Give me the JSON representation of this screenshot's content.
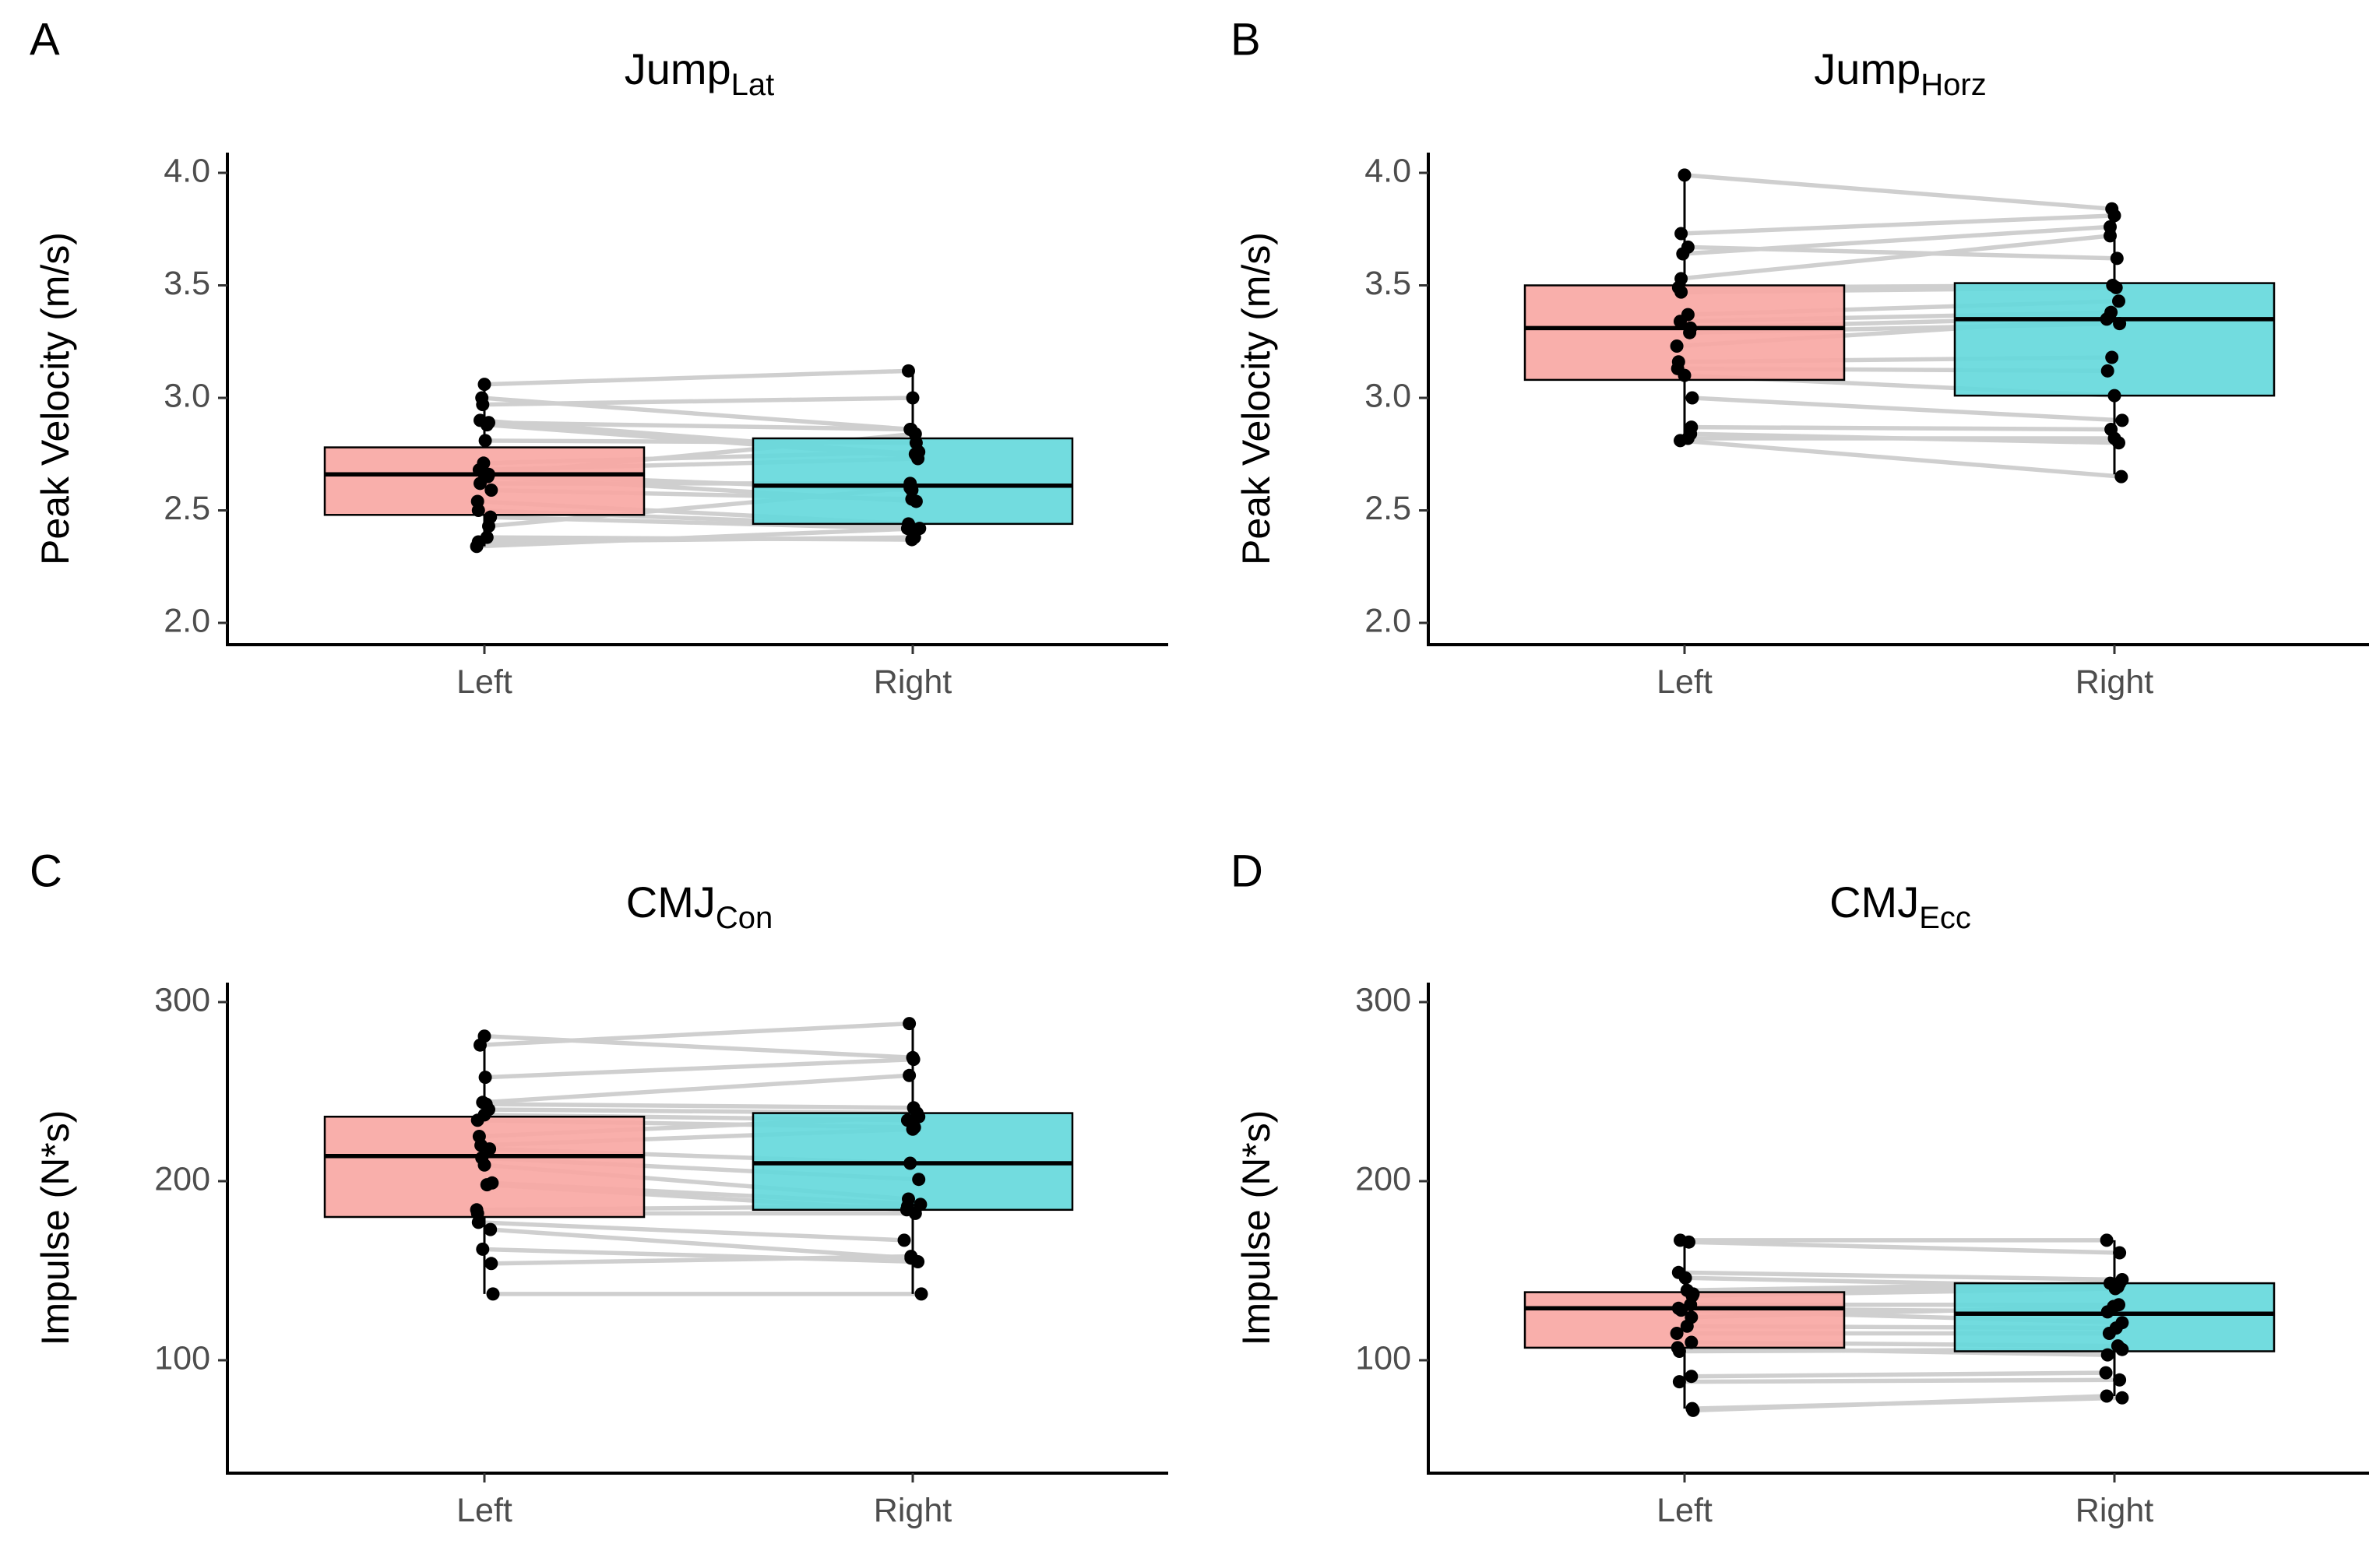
{
  "colors": {
    "left_fill": "#F8A8A4",
    "right_fill": "#66D9DC",
    "point": "#000000",
    "pair_line": "#CFCFCF"
  },
  "chart_data": [
    {
      "type": "box",
      "panel": "A",
      "title_main": "Jump",
      "title_sub": "Lat",
      "ylabel": "Peak Velocity (m/s)",
      "ylim": [
        1.9,
        4.1
      ],
      "yticks": [
        2.0,
        2.5,
        3.0,
        3.5,
        4.0
      ],
      "ytick_labels": [
        "2.0",
        "2.5",
        "3.0",
        "3.5",
        "4.0"
      ],
      "categories": [
        "Left",
        "Right"
      ],
      "boxes": [
        {
          "q1": 2.48,
          "median": 2.66,
          "q3": 2.78,
          "whisker_low": 2.34,
          "whisker_high": 3.06
        },
        {
          "q1": 2.44,
          "median": 2.61,
          "q3": 2.82,
          "whisker_low": 2.38,
          "whisker_high": 3.12
        }
      ],
      "pairs": [
        [
          3.06,
          3.12
        ],
        [
          3.0,
          2.86
        ],
        [
          2.97,
          3.0
        ],
        [
          2.9,
          2.75
        ],
        [
          2.89,
          2.86
        ],
        [
          2.88,
          2.74
        ],
        [
          2.81,
          2.8
        ],
        [
          2.71,
          2.76
        ],
        [
          2.68,
          2.73
        ],
        [
          2.66,
          2.84
        ],
        [
          2.66,
          2.59
        ],
        [
          2.65,
          2.54
        ],
        [
          2.62,
          2.62
        ],
        [
          2.59,
          2.55
        ],
        [
          2.54,
          2.44
        ],
        [
          2.5,
          2.43
        ],
        [
          2.47,
          2.42
        ],
        [
          2.43,
          2.6
        ],
        [
          2.38,
          2.37
        ],
        [
          2.36,
          2.38
        ],
        [
          2.34,
          2.42
        ]
      ],
      "jitter": [
        [
          0.0,
          -0.05
        ],
        [
          -0.03,
          -0.02
        ],
        [
          -0.02,
          0.0
        ],
        [
          -0.05,
          0.03
        ],
        [
          0.05,
          -0.03
        ],
        [
          0.03,
          0.05
        ],
        [
          0.01,
          0.04
        ],
        [
          -0.01,
          0.07
        ],
        [
          -0.06,
          0.06
        ],
        [
          0.05,
          0.03
        ],
        [
          0.0,
          -0.01
        ],
        [
          0.04,
          0.04
        ],
        [
          -0.05,
          -0.03
        ],
        [
          0.08,
          -0.01
        ],
        [
          -0.08,
          -0.05
        ],
        [
          -0.07,
          -0.04
        ],
        [
          0.07,
          -0.06
        ],
        [
          0.05,
          -0.03
        ],
        [
          0.03,
          -0.01
        ],
        [
          -0.07,
          0.02
        ],
        [
          -0.09,
          0.08
        ]
      ]
    },
    {
      "type": "box",
      "panel": "B",
      "title_main": "Jump",
      "title_sub": "Horz",
      "ylabel": "Peak Velocity (m/s)",
      "ylim": [
        1.9,
        4.1
      ],
      "yticks": [
        2.0,
        2.5,
        3.0,
        3.5,
        4.0
      ],
      "ytick_labels": [
        "2.0",
        "2.5",
        "3.0",
        "3.5",
        "4.0"
      ],
      "categories": [
        "Left",
        "Right"
      ],
      "boxes": [
        {
          "q1": 3.08,
          "median": 3.31,
          "q3": 3.5,
          "whisker_low": 2.82,
          "whisker_high": 3.99
        },
        {
          "q1": 3.01,
          "median": 3.35,
          "q3": 3.51,
          "whisker_low": 2.66,
          "whisker_high": 3.84
        }
      ],
      "pairs": [
        [
          3.99,
          3.84
        ],
        [
          3.73,
          3.81
        ],
        [
          3.67,
          3.62
        ],
        [
          3.64,
          3.76
        ],
        [
          3.53,
          3.72
        ],
        [
          3.49,
          3.5
        ],
        [
          3.47,
          3.49
        ],
        [
          3.37,
          3.43
        ],
        [
          3.34,
          3.38
        ],
        [
          3.31,
          3.36
        ],
        [
          3.29,
          3.33
        ],
        [
          3.23,
          3.35
        ],
        [
          3.16,
          3.18
        ],
        [
          3.13,
          3.12
        ],
        [
          3.1,
          3.01
        ],
        [
          3.0,
          2.9
        ],
        [
          2.87,
          2.86
        ],
        [
          2.84,
          2.8
        ],
        [
          2.82,
          2.82
        ],
        [
          2.81,
          2.65
        ]
      ],
      "jitter": [
        [
          0.0,
          -0.03
        ],
        [
          -0.04,
          0.0
        ],
        [
          0.04,
          0.03
        ],
        [
          -0.02,
          -0.05
        ],
        [
          -0.04,
          -0.05
        ],
        [
          -0.07,
          -0.02
        ],
        [
          -0.04,
          0.02
        ],
        [
          0.04,
          0.05
        ],
        [
          -0.05,
          -0.04
        ],
        [
          0.07,
          -0.06
        ],
        [
          0.06,
          0.06
        ],
        [
          -0.09,
          -0.09
        ],
        [
          -0.07,
          -0.03
        ],
        [
          -0.08,
          -0.08
        ],
        [
          0.0,
          0.0
        ],
        [
          0.09,
          0.09
        ],
        [
          0.08,
          -0.04
        ],
        [
          0.07,
          0.05
        ],
        [
          0.04,
          0.0
        ],
        [
          -0.05,
          0.08
        ]
      ]
    },
    {
      "type": "box",
      "panel": "C",
      "title_main": "CMJ",
      "title_sub": "Con",
      "ylabel": "Impulse (N*s)",
      "ylim": [
        45,
        312
      ],
      "yticks": [
        100,
        200,
        300
      ],
      "ytick_labels": [
        "100",
        "200",
        "300"
      ],
      "categories": [
        "Left",
        "Right"
      ],
      "boxes": [
        {
          "q1": 180,
          "median": 214,
          "q3": 236,
          "whisker_low": 137,
          "whisker_high": 281
        },
        {
          "q1": 184,
          "median": 210,
          "q3": 238,
          "whisker_low": 137,
          "whisker_high": 288
        }
      ],
      "pairs": [
        [
          281,
          269
        ],
        [
          276,
          288
        ],
        [
          258,
          268
        ],
        [
          244,
          259
        ],
        [
          243,
          241
        ],
        [
          240,
          238
        ],
        [
          237,
          234
        ],
        [
          234,
          230
        ],
        [
          225,
          236
        ],
        [
          220,
          229
        ],
        [
          218,
          210
        ],
        [
          213,
          201
        ],
        [
          209,
          190
        ],
        [
          199,
          187
        ],
        [
          198,
          184
        ],
        [
          184,
          186
        ],
        [
          182,
          182
        ],
        [
          177,
          167
        ],
        [
          173,
          157
        ],
        [
          162,
          155
        ],
        [
          154,
          158
        ],
        [
          137,
          137
        ]
      ],
      "jitter": [
        [
          0.0,
          0.0
        ],
        [
          -0.05,
          -0.04
        ],
        [
          0.01,
          0.01
        ],
        [
          -0.02,
          -0.04
        ],
        [
          0.02,
          0.01
        ],
        [
          0.05,
          0.05
        ],
        [
          0.0,
          -0.06
        ],
        [
          -0.08,
          0.02
        ],
        [
          -0.06,
          0.07
        ],
        [
          -0.04,
          0.0
        ],
        [
          0.06,
          -0.03
        ],
        [
          -0.03,
          0.07
        ],
        [
          0.0,
          -0.05
        ],
        [
          0.09,
          0.09
        ],
        [
          0.03,
          -0.07
        ],
        [
          -0.09,
          -0.06
        ],
        [
          -0.08,
          0.03
        ],
        [
          -0.07,
          -0.1
        ],
        [
          0.07,
          -0.02
        ],
        [
          -0.02,
          0.06
        ],
        [
          0.08,
          -0.02
        ],
        [
          0.1,
          0.1
        ]
      ]
    },
    {
      "type": "box",
      "panel": "D",
      "title_main": "CMJ",
      "title_sub": "Ecc",
      "ylabel": "Impulse (N*s)",
      "ylim": [
        45,
        312
      ],
      "yticks": [
        100,
        200,
        300
      ],
      "ytick_labels": [
        "100",
        "200",
        "300"
      ],
      "categories": [
        "Left",
        "Right"
      ],
      "boxes": [
        {
          "q1": 107,
          "median": 129,
          "q3": 138,
          "whisker_low": 73,
          "whisker_high": 167
        },
        {
          "q1": 105,
          "median": 126,
          "q3": 143,
          "whisker_low": 80,
          "whisker_high": 167
        }
      ],
      "pairs": [
        [
          167,
          167
        ],
        [
          166,
          160
        ],
        [
          149,
          145
        ],
        [
          146,
          141
        ],
        [
          139,
          143
        ],
        [
          137,
          143
        ],
        [
          136,
          140
        ],
        [
          131,
          131
        ],
        [
          129,
          127
        ],
        [
          128,
          121
        ],
        [
          124,
          130
        ],
        [
          119,
          118
        ],
        [
          115,
          115
        ],
        [
          110,
          108
        ],
        [
          107,
          103
        ],
        [
          105,
          106
        ],
        [
          91,
          93
        ],
        [
          88,
          89
        ],
        [
          73,
          79
        ],
        [
          72,
          80
        ]
      ],
      "jitter": [
        [
          -0.05,
          -0.09
        ],
        [
          0.05,
          0.06
        ],
        [
          -0.07,
          0.09
        ],
        [
          0.01,
          0.04
        ],
        [
          0.03,
          -0.05
        ],
        [
          0.1,
          0.06
        ],
        [
          0.09,
          0.01
        ],
        [
          0.07,
          0.05
        ],
        [
          -0.07,
          -0.08
        ],
        [
          -0.04,
          0.09
        ],
        [
          0.08,
          -0.01
        ],
        [
          0.03,
          0.02
        ],
        [
          -0.09,
          -0.06
        ],
        [
          0.08,
          0.04
        ],
        [
          -0.08,
          -0.08
        ],
        [
          -0.06,
          0.09
        ],
        [
          0.08,
          -0.1
        ],
        [
          -0.06,
          0.06
        ],
        [
          0.09,
          0.09
        ],
        [
          0.1,
          -0.09
        ]
      ]
    }
  ]
}
